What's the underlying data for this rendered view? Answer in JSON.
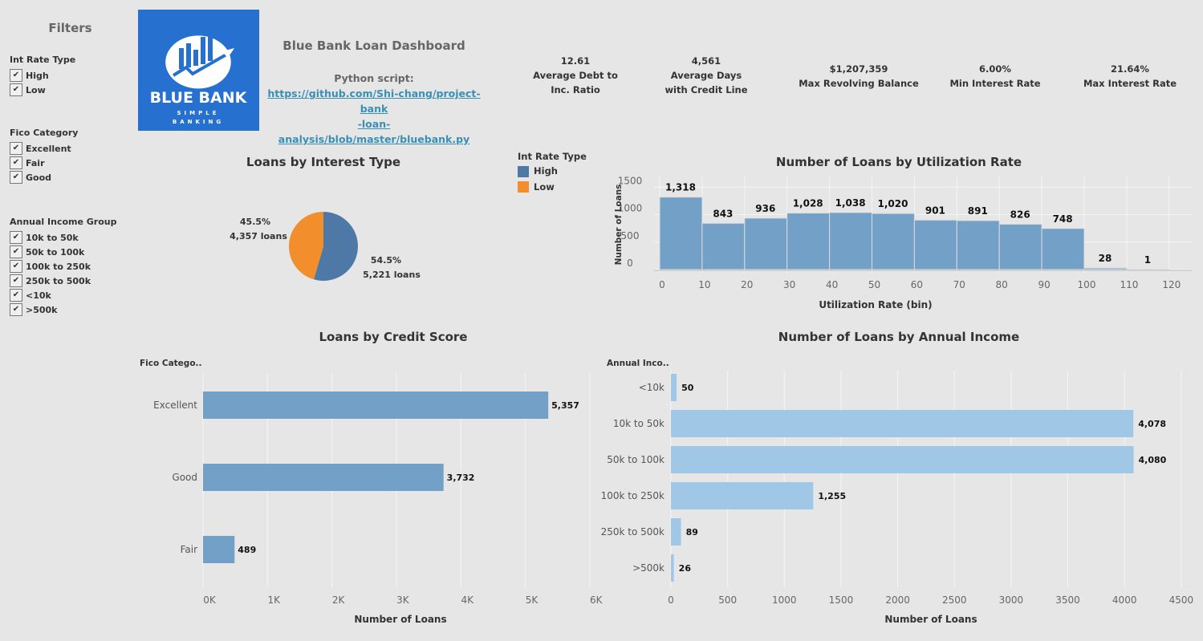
{
  "filters": {
    "title": "Filters",
    "groups": [
      {
        "title": "Int Rate Type",
        "items": [
          "High",
          "Low"
        ]
      },
      {
        "title": "Fico Category",
        "items": [
          "Excellent",
          "Fair",
          "Good"
        ]
      },
      {
        "title": "Annual Income Group",
        "items": [
          "10k to 50k",
          "50k to 100k",
          "100k to 250k",
          "250k to 500k",
          "<10k",
          ">500k"
        ]
      }
    ],
    "check_glyph": "✔"
  },
  "logo": {
    "line1": "BLUE BANK",
    "line2": "SIMPLE",
    "line3": "BANKING"
  },
  "header": {
    "title": "Blue Bank Loan Dashboard",
    "python_label": "Python script:",
    "link_line1": "https://github.com/Shi-chang/project-bank",
    "link_line2": "-loan-analysis/blob/master/bluebank.py"
  },
  "kpis": [
    {
      "value": "12.61",
      "label": "Average Debt to Inc. Ratio"
    },
    {
      "value": "4,561",
      "label": "Average Days with Credit Line"
    },
    {
      "value": "$1,207,359",
      "label": "Max Revolving Balance"
    },
    {
      "value": "6.00%",
      "label": "Min Interest Rate"
    },
    {
      "value": "21.64%",
      "label": "Max Interest Rate"
    }
  ],
  "colors": {
    "high": "#4e79a7",
    "low": "#f28e2b",
    "bar": "#73a0c6",
    "income_bar": "#a0c8e6"
  },
  "chart_data": [
    {
      "type": "pie",
      "title": "Loans by Interest Type",
      "legend_title": "Int Rate Type",
      "legend_placement": "right",
      "slices": [
        {
          "name": "High",
          "value": 5221,
          "pct": "54.5%",
          "label": "5,221  loans"
        },
        {
          "name": "Low",
          "value": 4357,
          "pct": "45.5%",
          "label": "4,357  loans"
        }
      ]
    },
    {
      "type": "bar",
      "title": "Number of Loans by Utilization Rate",
      "xlabel": "Utilization Rate (bin)",
      "ylabel": "Number of Loans",
      "bins": [
        0,
        10,
        20,
        30,
        40,
        50,
        60,
        70,
        80,
        90,
        100,
        110
      ],
      "values": [
        1318,
        843,
        936,
        1028,
        1038,
        1020,
        901,
        891,
        826,
        748,
        28,
        1
      ],
      "labels": [
        "1,318",
        "843",
        "936",
        "1,028",
        "1,038",
        "1,020",
        "901",
        "891",
        "826",
        "748",
        "28",
        "1"
      ],
      "xticks": [
        0,
        10,
        20,
        30,
        40,
        50,
        60,
        70,
        80,
        90,
        100,
        110,
        120
      ],
      "yticks": [
        0,
        500,
        1000,
        1500
      ],
      "xlim": [
        0,
        125
      ],
      "ylim": [
        0,
        1650
      ],
      "grid": true
    },
    {
      "type": "bar",
      "orientation": "horizontal",
      "title": "Loans by Credit Score",
      "category_header": "Fico Catego..",
      "xlabel": "Number of Loans",
      "categories": [
        "Excellent",
        "Good",
        "Fair"
      ],
      "values": [
        5357,
        3732,
        489
      ],
      "labels": [
        "5,357",
        "3,732",
        "489"
      ],
      "xticks": [
        "0K",
        "1K",
        "2K",
        "3K",
        "4K",
        "5K",
        "6K"
      ],
      "xlim": [
        0,
        6000
      ],
      "grid": true
    },
    {
      "type": "bar",
      "orientation": "horizontal",
      "title": "Number of Loans by Annual Income",
      "category_header": "Annual Inco..",
      "xlabel": "Number of Loans",
      "categories": [
        "<10k",
        "10k to 50k",
        "50k to 100k",
        "100k to 250k",
        "250k to 500k",
        ">500k"
      ],
      "values": [
        50,
        4078,
        4080,
        1255,
        89,
        26
      ],
      "labels": [
        "50",
        "4,078",
        "4,080",
        "1,255",
        "89",
        "26"
      ],
      "xticks": [
        "0",
        "500",
        "1000",
        "1500",
        "2000",
        "2500",
        "3000",
        "3500",
        "4000",
        "4500"
      ],
      "xlim": [
        0,
        4500
      ],
      "grid": true
    }
  ]
}
